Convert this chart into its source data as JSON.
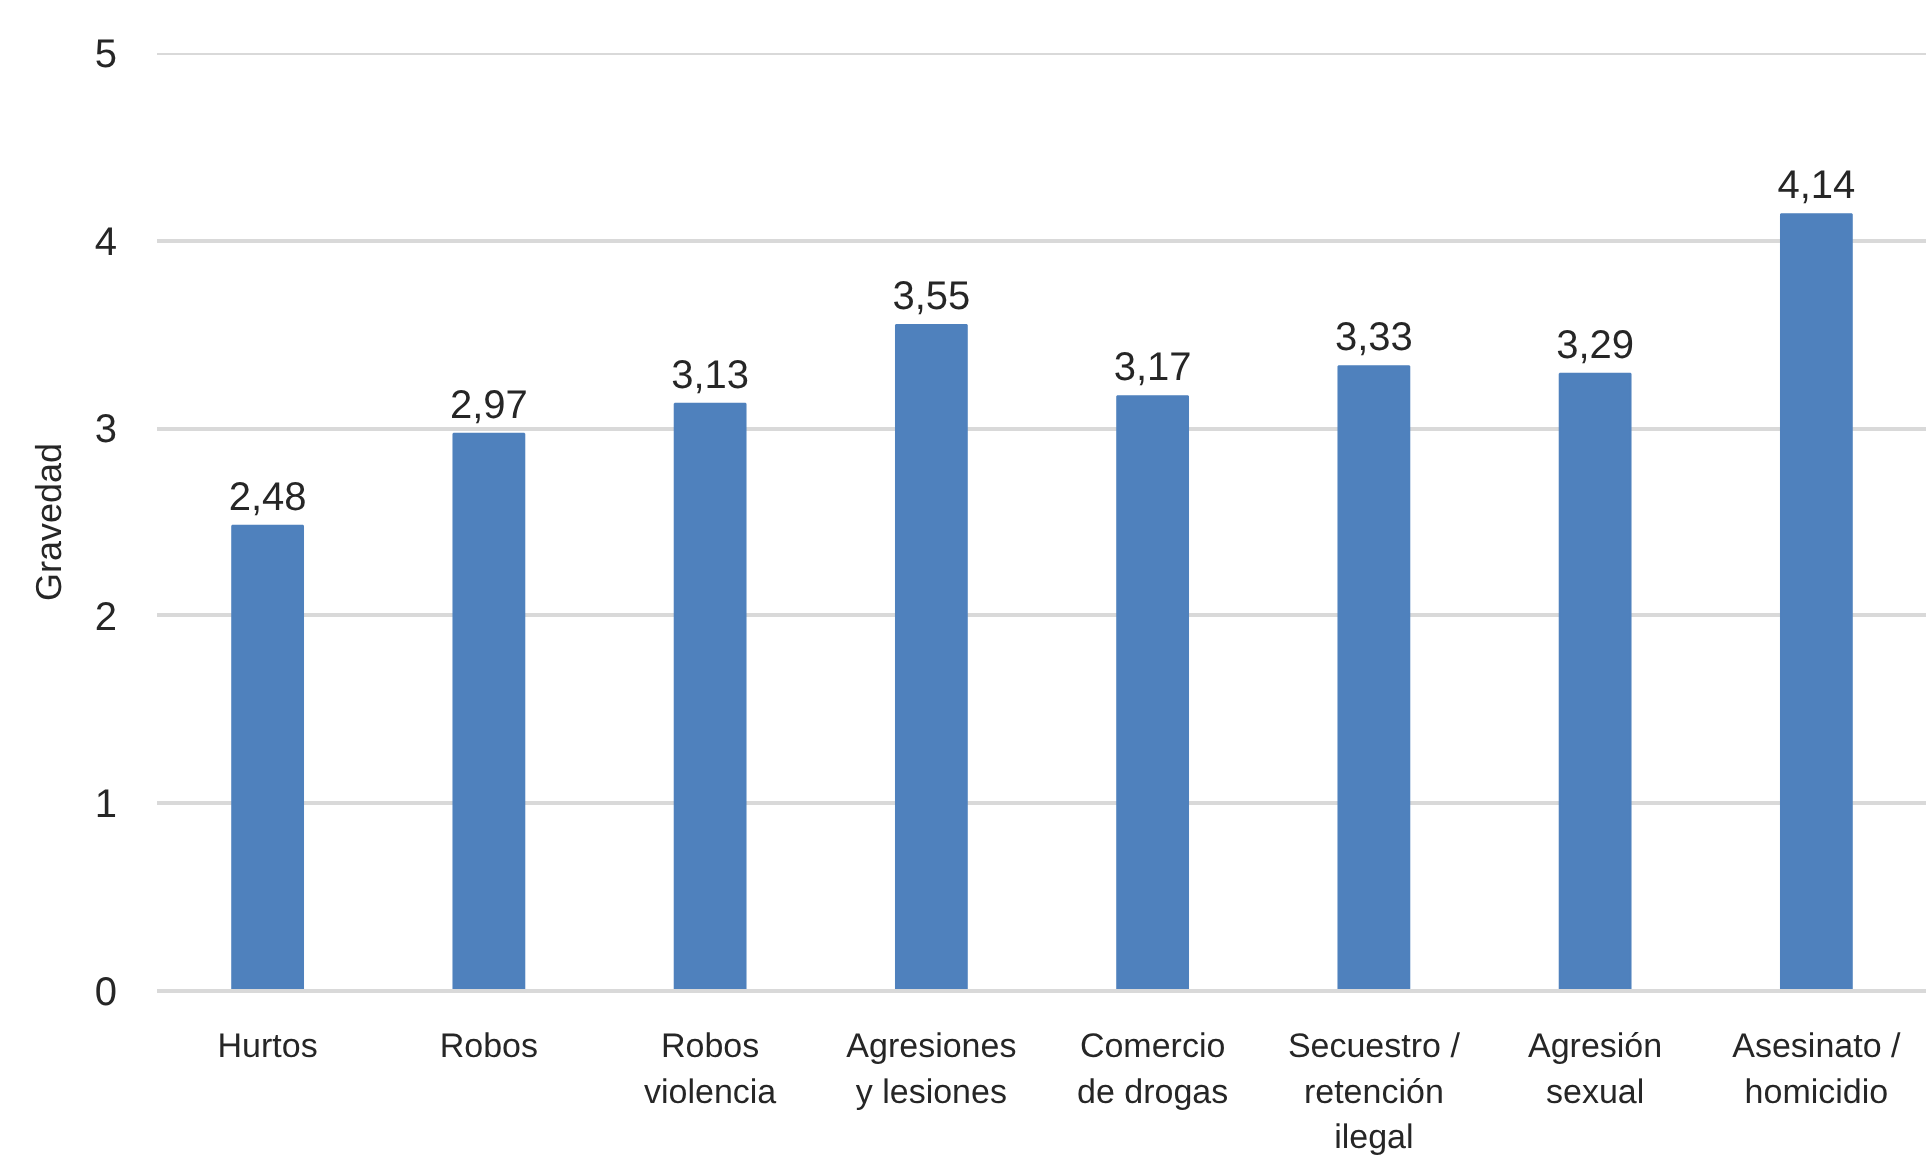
{
  "chart_data": {
    "type": "bar",
    "ylabel": "Gravedad",
    "categories": [
      "Hurtos",
      "Robos",
      "Robos\nviolencia",
      "Agresiones\ny lesiones",
      "Comercio\nde drogas",
      "Secuestro /\nretención\nilegal",
      "Agresión\nsexual",
      "Asesinato /\nhomicidio"
    ],
    "values": [
      2.48,
      2.97,
      3.13,
      3.55,
      3.17,
      3.33,
      3.29,
      4.14
    ],
    "value_labels": [
      "2,48",
      "2,97",
      "3,13",
      "3,55",
      "3,17",
      "3,33",
      "3,29",
      "4,14"
    ],
    "color": "#4f81bd",
    "ylim": [
      0,
      5
    ],
    "yticks": [
      0,
      1,
      2,
      3,
      4,
      5
    ],
    "grid": "y"
  }
}
